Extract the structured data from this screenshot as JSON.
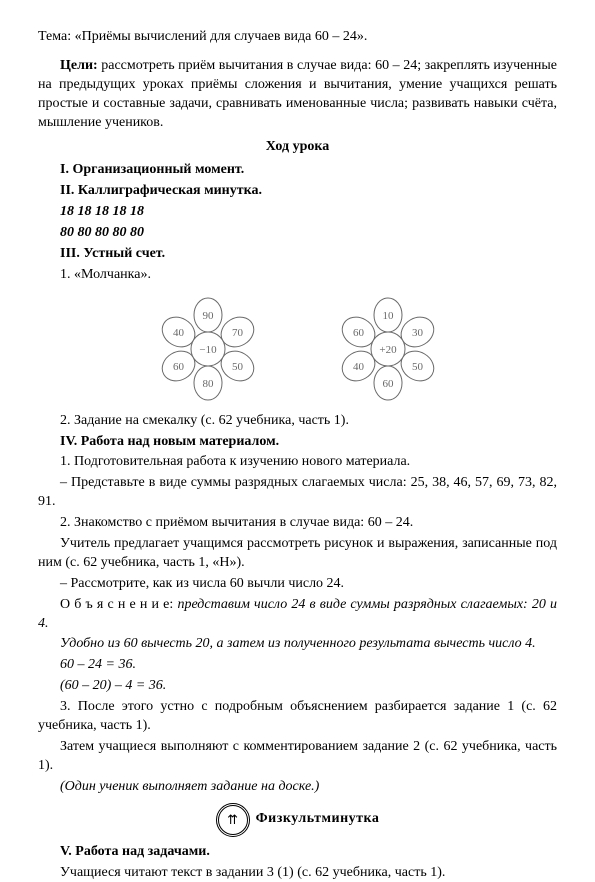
{
  "topic": "Тема: «Приёмы вычислений для случаев вида 60 – 24».",
  "goals_label": "Цели:",
  "goals": " рассмотреть приём вычитания в случае вида: 60 – 24; закреплять изученные на предыдущих уроках приёмы сложения и вычитания, умение учащихся решать простые и составные задачи, сравнивать именованные числа; развивать навыки счёта, мышление учеников.",
  "lesson_course": "Ход урока",
  "s1": "I. Организационный момент.",
  "s2": "II. Каллиграфическая минутка.",
  "callig1": "18 18 18 18 18",
  "callig2": "80 80 80 80 80",
  "s3": "III. Устный счет.",
  "s3_1": "1. «Молчанка».",
  "flower_left": {
    "center": "−10",
    "petals": [
      "90",
      "70",
      "50",
      "80",
      "60",
      "40"
    ]
  },
  "flower_right": {
    "center": "+20",
    "petals": [
      "10",
      "30",
      "50",
      "60",
      "40",
      "60"
    ]
  },
  "flower_style": {
    "stroke": "#696969",
    "fill": "#ffffff",
    "text": "#696969",
    "stroke_width": 1
  },
  "s3_2": "2. Задание на смекалку (с. 62 учебника, часть 1).",
  "s4": "IV. Работа над новым материалом.",
  "s4_1": "1. Подготовительная работа к изучению нового материала.",
  "s4_1a": "– Представьте в виде суммы разрядных слагаемых числа: 25, 38, 46, 57, 69, 73, 82, 91.",
  "s4_2": "2. Знакомство с приёмом вычитания в случае вида: 60 – 24.",
  "s4_2a": "Учитель предлагает учащимся рассмотреть рисунок и выражения, записанные под ним (с. 62 учебника, часть 1, «Н»).",
  "s4_2b": "– Рассмотрите, как из числа 60 вычли число 24.",
  "s4_2c_pre": "О б ъ я с н е н и е: ",
  "s4_2c_it": "представим число 24 в виде суммы разрядных слагаемых: 20 и 4.",
  "s4_2d": "Удобно из 60 вычесть 20, а затем из полученного результата вычесть число 4.",
  "s4_2e": "60 – 24 = 36.",
  "s4_2f": "(60 – 20) – 4 = 36.",
  "s4_3": "3. После этого устно с подробным объяснением разбирается задание 1 (с. 62 учебника, часть 1).",
  "s4_3a": "Затем учащиеся выполняют с комментированием задание 2 (с. 62 учебника, часть 1).",
  "s4_3b": "(Один ученик выполняет задание на доске.)",
  "badge": "⇈",
  "fizk": "Физкультминутка",
  "s5": "V. Работа над задачами.",
  "s5_1": "Учащиеся читают текст в задании 3 (1) (с. 62 учебника, часть 1)."
}
